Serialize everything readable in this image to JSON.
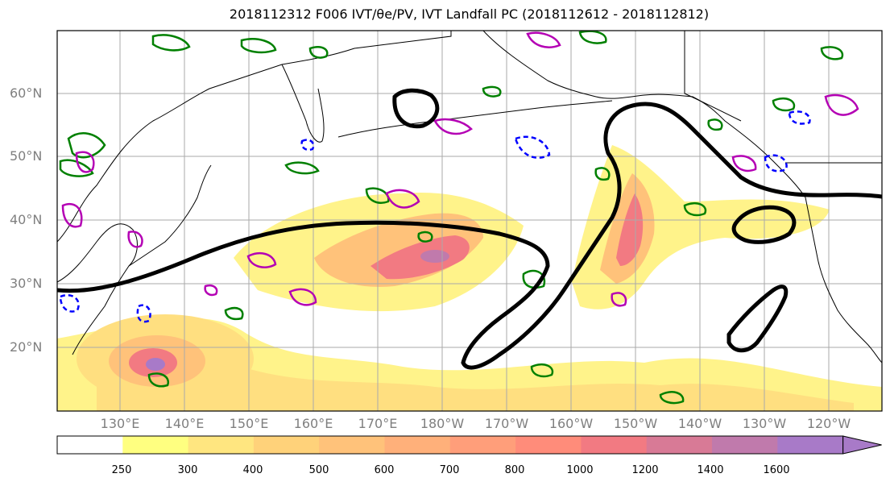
{
  "title": "2018112312 F006 IVT/θe/PV, IVT Landfall PC (2018112612 - 2018112812)",
  "lat_labels": [
    "60°N",
    "50°N",
    "40°N",
    "30°N",
    "20°N"
  ],
  "lon_labels": [
    "130°E",
    "140°E",
    "150°E",
    "160°E",
    "170°E",
    "180°W",
    "170°W",
    "160°W",
    "150°W",
    "140°W",
    "130°W",
    "120°W"
  ],
  "colorbar": {
    "levels": [
      "250",
      "300",
      "400",
      "500",
      "600",
      "700",
      "800",
      "1000",
      "1200",
      "1400",
      "1600"
    ],
    "colors": [
      "#ffffff",
      "#ffff80",
      "#ffe680",
      "#ffd27a",
      "#ffc27a",
      "#ffb07a",
      "#ff9e7a",
      "#ff8c7a",
      "#f27a82",
      "#d87a96",
      "#c07aac",
      "#a87ac8"
    ]
  },
  "colors": {
    "theta_e": "#008000",
    "pv_positive": "#b400b4",
    "pv_negative": "#0000ff",
    "landfall_pc": "#000000",
    "coastline": "#000000",
    "gridline": "#aaaaaa"
  }
}
